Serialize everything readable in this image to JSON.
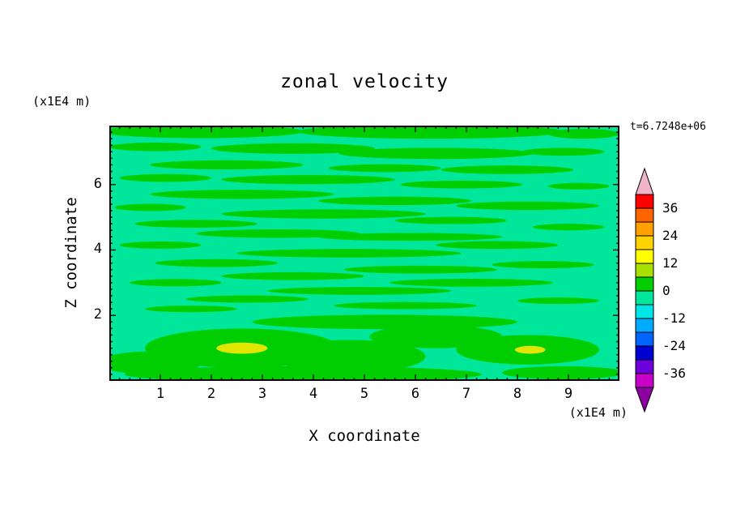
{
  "title": "zonal velocity",
  "timestamp_label": "t=6.7248e+06",
  "axes": {
    "x_label": "X coordinate",
    "x_unit": "(x1E4 m)",
    "z_label": "Z coordinate",
    "z_unit": "(x1E4 m)",
    "x_ticks": [
      1,
      2,
      3,
      4,
      5,
      6,
      7,
      8,
      9
    ],
    "z_ticks": [
      2,
      4,
      6
    ]
  },
  "colorbar": {
    "tick_labels": [
      "36",
      "24",
      "12",
      "0",
      "-12",
      "-24",
      "-36"
    ],
    "band_colors_top_to_bottom": [
      "#FF0000",
      "#FF6400",
      "#FFA000",
      "#FFD200",
      "#FFFF00",
      "#A8E100",
      "#00CE00",
      "#00E69B",
      "#00E6E6",
      "#00AAFF",
      "#0064FF",
      "#0000D2",
      "#6E00DC",
      "#C800C8"
    ],
    "top_arrow_color": "#F0B4C8",
    "bottom_arrow_color": "#8C00A0"
  },
  "chart_data": {
    "type": "filled_contour",
    "title": "zonal velocity",
    "time_label": "t=6.7248e+06",
    "xlabel": "X coordinate",
    "x_unit": "(x1E4 m)",
    "ylabel": "Z coordinate",
    "y_unit": "(x1E4 m)",
    "x_range": [
      0,
      10
    ],
    "x_ticks": [
      1,
      2,
      3,
      4,
      5,
      6,
      7,
      8,
      9
    ],
    "z_range": [
      0,
      7.8
    ],
    "z_ticks": [
      2,
      4,
      6
    ],
    "contour_interval": 6,
    "colorbar_ticks": [
      36,
      24,
      12,
      0,
      -12,
      -24,
      -36
    ],
    "field_summary": "Zonal velocity mostly in the -6..0 band (aqua) with elongated horizontal 0..6 streaks (green) and two small 6..12 spots (yellow) near the bottom around x=2.6 and x=8.2",
    "palette": {
      "aqua": "#00E69B",
      "green": "#00CE00",
      "yellow": "#E0E600"
    },
    "streaks_band_0_to_6": [
      [
        1.8,
        7.62,
        2.0,
        0.2
      ],
      [
        6.3,
        7.62,
        2.6,
        0.22
      ],
      [
        9.3,
        7.55,
        0.7,
        0.15
      ],
      [
        0.9,
        7.15,
        0.9,
        0.13
      ],
      [
        3.6,
        7.1,
        1.6,
        0.16
      ],
      [
        6.4,
        6.95,
        1.9,
        0.17
      ],
      [
        8.9,
        7.0,
        0.8,
        0.12
      ],
      [
        2.3,
        6.6,
        1.5,
        0.14
      ],
      [
        5.4,
        6.5,
        1.1,
        0.12
      ],
      [
        7.8,
        6.45,
        1.3,
        0.13
      ],
      [
        1.1,
        6.2,
        0.9,
        0.12
      ],
      [
        3.9,
        6.15,
        1.7,
        0.14
      ],
      [
        6.9,
        6.0,
        1.2,
        0.12
      ],
      [
        9.2,
        5.95,
        0.6,
        0.1
      ],
      [
        2.6,
        5.7,
        1.8,
        0.14
      ],
      [
        5.6,
        5.5,
        1.5,
        0.13
      ],
      [
        0.8,
        5.3,
        0.7,
        0.11
      ],
      [
        8.2,
        5.35,
        1.4,
        0.13
      ],
      [
        4.2,
        5.1,
        2.0,
        0.14
      ],
      [
        6.7,
        4.9,
        1.1,
        0.11
      ],
      [
        1.7,
        4.8,
        1.2,
        0.12
      ],
      [
        9.0,
        4.7,
        0.7,
        0.1
      ],
      [
        3.3,
        4.5,
        1.6,
        0.13
      ],
      [
        5.9,
        4.4,
        1.8,
        0.12
      ],
      [
        1.0,
        4.15,
        0.8,
        0.11
      ],
      [
        7.6,
        4.15,
        1.2,
        0.12
      ],
      [
        4.7,
        3.9,
        2.2,
        0.13
      ],
      [
        2.1,
        3.6,
        1.2,
        0.12
      ],
      [
        8.5,
        3.55,
        1.0,
        0.11
      ],
      [
        6.1,
        3.4,
        1.5,
        0.12
      ],
      [
        3.6,
        3.2,
        1.4,
        0.12
      ],
      [
        1.3,
        3.0,
        0.9,
        0.11
      ],
      [
        7.1,
        3.0,
        1.6,
        0.12
      ],
      [
        4.9,
        2.75,
        1.8,
        0.12
      ],
      [
        2.7,
        2.5,
        1.2,
        0.11
      ],
      [
        8.8,
        2.45,
        0.8,
        0.1
      ],
      [
        5.8,
        2.3,
        1.4,
        0.11
      ],
      [
        1.6,
        2.2,
        0.9,
        0.1
      ],
      [
        2.6,
        1.0,
        1.9,
        0.6
      ],
      [
        4.7,
        0.75,
        1.5,
        0.5
      ],
      [
        6.4,
        1.35,
        1.3,
        0.35
      ],
      [
        8.2,
        0.95,
        1.4,
        0.45
      ],
      [
        0.8,
        0.55,
        1.0,
        0.35
      ],
      [
        5.4,
        1.8,
        2.6,
        0.22
      ],
      [
        3.8,
        0.2,
        3.5,
        0.25
      ],
      [
        8.9,
        0.25,
        1.2,
        0.2
      ]
    ],
    "spots_band_6_to_12": [
      [
        2.6,
        1.0,
        0.5,
        0.17
      ],
      [
        8.25,
        0.95,
        0.3,
        0.12
      ]
    ]
  }
}
